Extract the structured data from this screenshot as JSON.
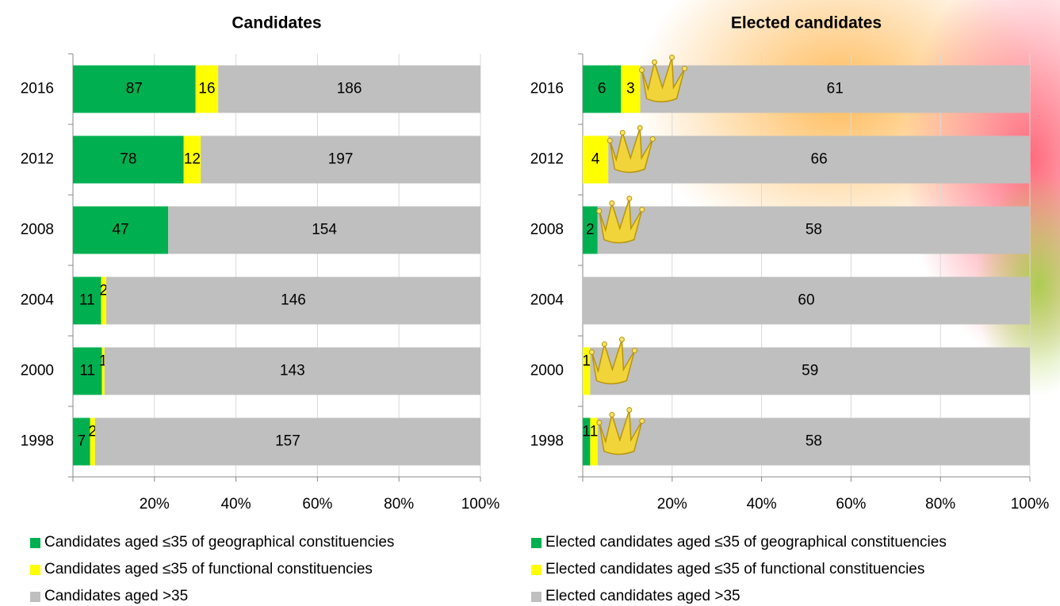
{
  "chart_data": [
    {
      "type": "bar",
      "stacked": "percent",
      "orientation": "horizontal",
      "title": "Candidates",
      "categories": [
        "2016",
        "2012",
        "2008",
        "2004",
        "2000",
        "1998"
      ],
      "series": [
        {
          "name": "Candidates aged ≤35 of geographical constituencies",
          "color": "#00b050",
          "values": [
            87,
            78,
            47,
            11,
            11,
            7
          ]
        },
        {
          "name": "Candidates aged ≤35 of functional constituencies",
          "color": "#ffff00",
          "values": [
            16,
            12,
            null,
            2,
            1,
            2
          ]
        },
        {
          "name": "Candidates aged >35",
          "color": "#bfbfbf",
          "values": [
            186,
            197,
            154,
            146,
            143,
            157
          ]
        }
      ],
      "xlim": [
        0,
        100
      ],
      "xticks": [
        {
          "value": 20,
          "label": "20%"
        },
        {
          "value": 40,
          "label": "40%"
        },
        {
          "value": 60,
          "label": "60%"
        },
        {
          "value": 80,
          "label": "80%"
        },
        {
          "value": 100,
          "label": "100%"
        }
      ],
      "grid": true,
      "legend": "bottom"
    },
    {
      "type": "bar",
      "stacked": "percent",
      "orientation": "horizontal",
      "title": "Elected candidates",
      "categories": [
        "2016",
        "2012",
        "2008",
        "2004",
        "2000",
        "1998"
      ],
      "series": [
        {
          "name": "Elected candidates aged ≤35 of geographical constituencies",
          "color": "#00b050",
          "values": [
            6,
            null,
            2,
            null,
            null,
            1
          ]
        },
        {
          "name": "Elected candidates aged ≤35 of functional constituencies",
          "color": "#ffff00",
          "values": [
            3,
            4,
            null,
            null,
            1,
            1
          ]
        },
        {
          "name": "Elected candidates aged >35",
          "color": "#bfbfbf",
          "values": [
            61,
            66,
            58,
            60,
            59,
            58
          ]
        }
      ],
      "xlim": [
        0,
        100
      ],
      "xticks": [
        {
          "value": 20,
          "label": "20%"
        },
        {
          "value": 40,
          "label": "40%"
        },
        {
          "value": 60,
          "label": "60%"
        },
        {
          "value": 80,
          "label": "80%"
        },
        {
          "value": 100,
          "label": "100%"
        }
      ],
      "grid": true,
      "legend": "bottom"
    }
  ]
}
